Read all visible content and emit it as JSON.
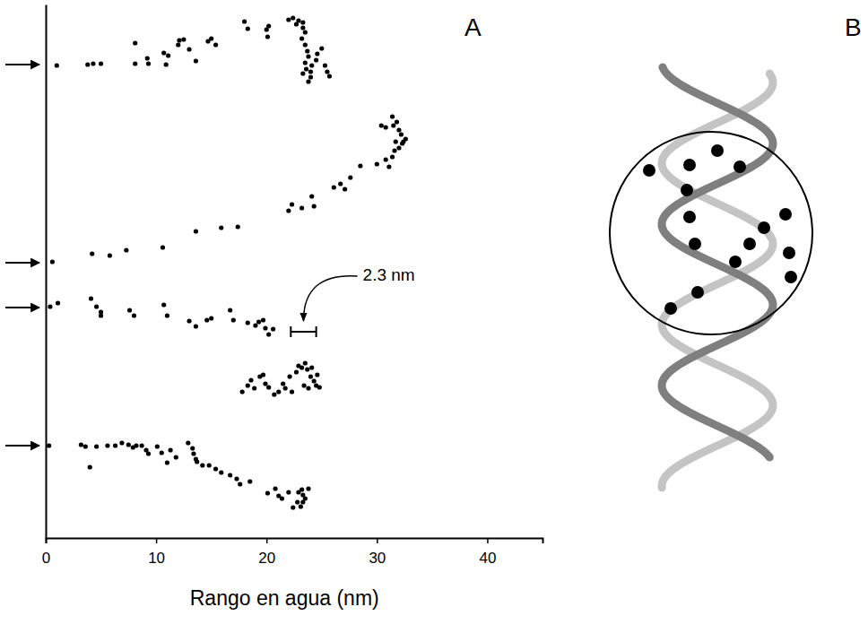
{
  "chart_data": {
    "type": "scatter",
    "panel_label": "A",
    "x_label": "Rango en agua (nm)",
    "xlim": [
      0,
      45
    ],
    "xticks": [
      0,
      10,
      20,
      30,
      40
    ],
    "ylim": [
      0,
      595
    ],
    "tick_labels": "x",
    "grid": false,
    "color": "#000000",
    "marker": "circle",
    "series": [
      {
        "x": [
          1.0,
          3.8,
          4.3,
          5.0,
          8.1,
          8.1,
          9.2,
          9.3,
          10.7,
          11.1,
          10.9,
          12.0,
          12.1,
          12.5,
          13.0,
          13.6,
          14.7,
          15.0,
          15.4,
          18.0,
          18.3,
          20.0,
          20.1,
          20.2,
          22.0,
          22.4,
          22.7,
          22.9,
          23.3,
          23.3,
          23.5,
          23.2,
          23.5,
          23.7,
          23.8,
          23.5,
          24.0,
          24.1,
          24.5,
          24.6,
          25.0,
          25.3,
          25.5,
          25.7,
          23.3,
          23.6,
          24.0,
          23.8
        ],
        "values": [
          527,
          528,
          529,
          529,
          552,
          529,
          535,
          529,
          541,
          538,
          528,
          550,
          555,
          556,
          545,
          532,
          554,
          557,
          550,
          576,
          568,
          567,
          559,
          571,
          578,
          580,
          573,
          577,
          575,
          569,
          564,
          557,
          550,
          543,
          537,
          530,
          520,
          527,
          533,
          540,
          546,
          527,
          520,
          515,
          518,
          523,
          514,
          509
        ]
      },
      {
        "x": [
          0.6,
          4.2,
          5.8,
          7.3,
          10.6,
          13.6,
          15.9,
          17.4,
          22.0,
          22.3,
          23.2,
          24.1,
          24.3,
          26.1,
          26.7,
          27.1,
          27.6,
          28.5,
          30.0,
          30.8,
          31.1,
          31.4,
          31.6,
          30.4,
          30.8,
          31.4,
          31.5,
          31.8,
          32.0,
          32.2,
          32.3,
          32.4,
          32.6,
          31.7,
          32.0
        ],
        "values": [
          308,
          317,
          315,
          321,
          324,
          342,
          346,
          347,
          365,
          372,
          368,
          381,
          370,
          391,
          395,
          389,
          402,
          415,
          417,
          422,
          414,
          425,
          432,
          460,
          458,
          470,
          460,
          464,
          455,
          450,
          440,
          442,
          445,
          442,
          435
        ]
      },
      {
        "x": [
          0.4,
          1.1,
          4.1,
          4.6,
          5.0,
          5.0,
          7.6,
          8.0,
          10.7,
          11.0,
          13.0,
          13.6,
          14.6,
          15.0,
          16.7,
          17.0,
          18.3,
          19.0,
          19.3,
          19.7,
          19.9,
          20.2,
          20.6
        ],
        "values": [
          258,
          262,
          267,
          258,
          252,
          248,
          254,
          248,
          260,
          248,
          242,
          236,
          243,
          245,
          254,
          243,
          240,
          237,
          241,
          243,
          234,
          227,
          233
        ]
      },
      {
        "x": [
          17.8,
          18.3,
          18.6,
          18.9,
          19.4,
          19.7,
          19.9,
          20.2,
          20.7,
          21.1,
          21.5,
          21.7,
          22.1,
          22.3,
          22.7,
          22.9,
          23.2,
          23.5,
          23.7,
          24.0,
          24.3,
          24.5,
          24.6,
          23.4,
          23.8,
          24.1,
          24.8
        ],
        "values": [
          163,
          170,
          176,
          167,
          180,
          182,
          172,
          168,
          160,
          163,
          172,
          167,
          180,
          163,
          185,
          192,
          190,
          195,
          188,
          180,
          175,
          170,
          182,
          170,
          167,
          190,
          168
        ]
      },
      {
        "x": [
          0.3,
          3.2,
          3.6,
          4.6,
          5.6,
          6.3,
          6.9,
          7.5,
          7.9,
          8.2,
          4.0,
          8.7,
          9.1,
          9.3,
          10.1,
          10.5,
          11.0,
          11.3,
          11.8,
          12.9,
          13.3,
          13.4,
          13.6,
          13.7,
          14.2,
          14.8,
          15.4,
          15.9,
          16.7,
          17.3,
          17.6,
          18.5,
          20.1,
          20.8,
          21.4,
          22.0,
          22.4,
          22.8,
          22.9,
          23.2,
          23.3,
          23.5,
          23.3,
          23.1,
          23.8,
          21.1
        ],
        "values": [
          103,
          104,
          102,
          102,
          103,
          103,
          106,
          104,
          101,
          103,
          79,
          103,
          98,
          94,
          102,
          95,
          84,
          98,
          90,
          106,
          100,
          94,
          88,
          85,
          81,
          81,
          77,
          73,
          70,
          66,
          60,
          63,
          50,
          55,
          44,
          51,
          34,
          40,
          51,
          54,
          48,
          44,
          40,
          35,
          55,
          47
        ]
      }
    ],
    "annotations": [
      {
        "type": "arrow",
        "y": 528
      },
      {
        "type": "arrow",
        "y": 307
      },
      {
        "type": "arrow",
        "y": 257
      },
      {
        "type": "arrow",
        "y": 103
      },
      {
        "type": "scale_bar",
        "text": "2.3 nm",
        "x": [
          22.2,
          24.5
        ],
        "y": 230
      }
    ]
  },
  "diagram": {
    "label": "B"
  }
}
